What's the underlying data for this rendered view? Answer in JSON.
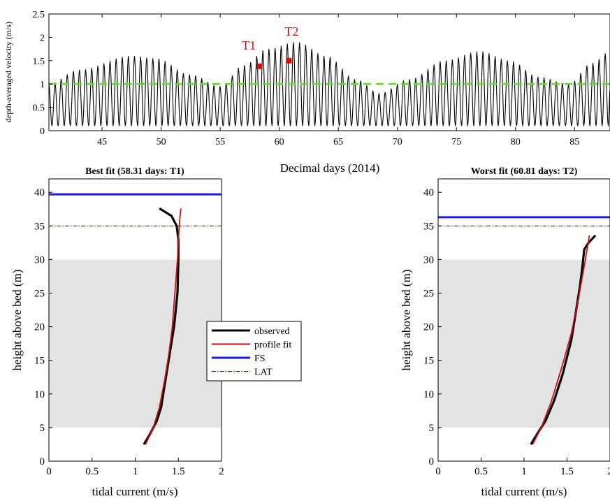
{
  "chart_data": [
    {
      "type": "line",
      "title": "",
      "xlabel": "Decimal days (2014)",
      "ylabel": "depth-averaged velocity (m/s)",
      "xlim": [
        40.5,
        88
      ],
      "ylim": [
        0,
        2.5
      ],
      "x_ticks": [
        45,
        50,
        55,
        60,
        65,
        70,
        75,
        80,
        85
      ],
      "y_ticks": [
        0,
        0.5,
        1,
        1.5,
        2,
        2.5
      ],
      "grid": false,
      "tidal_signal": {
        "semidiurnal_period_days": 0.5175,
        "trough_level": 0.1,
        "envelope_peaks": [
          {
            "x": 40.5,
            "y": 1.0
          },
          {
            "x": 43.0,
            "y": 1.3
          },
          {
            "x": 47.5,
            "y": 1.6
          },
          {
            "x": 49.5,
            "y": 1.55
          },
          {
            "x": 52.5,
            "y": 1.2
          },
          {
            "x": 55.0,
            "y": 0.95
          },
          {
            "x": 57.0,
            "y": 1.4
          },
          {
            "x": 59.0,
            "y": 1.75
          },
          {
            "x": 61.5,
            "y": 1.9
          },
          {
            "x": 64.0,
            "y": 1.6
          },
          {
            "x": 66.5,
            "y": 1.1
          },
          {
            "x": 68.5,
            "y": 0.8
          },
          {
            "x": 71.0,
            "y": 1.1
          },
          {
            "x": 74.0,
            "y": 1.5
          },
          {
            "x": 77.0,
            "y": 1.7
          },
          {
            "x": 79.5,
            "y": 1.5
          },
          {
            "x": 82.0,
            "y": 1.15
          },
          {
            "x": 84.5,
            "y": 1.0
          },
          {
            "x": 86.5,
            "y": 1.45
          },
          {
            "x": 88.0,
            "y": 1.7
          }
        ]
      },
      "threshold": {
        "y": 1.0,
        "color": "#66dd22"
      },
      "markers": [
        {
          "label": "T1",
          "x": 58.31,
          "y": 1.38,
          "color": "#cc1111"
        },
        {
          "label": "T2",
          "x": 60.81,
          "y": 1.5,
          "color": "#cc1111"
        }
      ]
    },
    {
      "type": "line",
      "title": "Best fit (58.31 days: T1)",
      "xlabel": "tidal current (m/s)",
      "ylabel": "height above bed (m)",
      "xlim": [
        0,
        2
      ],
      "ylim": [
        0,
        42
      ],
      "x_ticks": [
        0,
        0.5,
        1,
        1.5,
        2
      ],
      "x_tick_labels": [
        "0",
        "0.5",
        "1",
        "1.5",
        "2"
      ],
      "y_ticks": [
        0,
        5,
        10,
        15,
        20,
        25,
        30,
        35,
        40
      ],
      "shaded_band": {
        "y0": 5,
        "y1": 30,
        "color": "#e3e3e3"
      },
      "fs_level": 39.7,
      "lat_level": 35.0,
      "series": [
        {
          "name": "observed",
          "x": [
            1.1,
            1.17,
            1.25,
            1.3,
            1.35,
            1.4,
            1.45,
            1.49,
            1.5,
            1.5,
            1.48,
            1.42,
            1.28
          ],
          "y": [
            2.5,
            4,
            6,
            8,
            12,
            16,
            20,
            25,
            30,
            33,
            35,
            36.5,
            37.6
          ]
        },
        {
          "name": "profile fit",
          "x": [
            1.12,
            1.21,
            1.28,
            1.34,
            1.39,
            1.43,
            1.46,
            1.49,
            1.5,
            1.51,
            1.52,
            1.53
          ],
          "y": [
            2.5,
            5,
            8,
            12,
            16,
            20,
            25,
            30,
            33,
            35,
            36.5,
            37.6
          ]
        }
      ]
    },
    {
      "type": "line",
      "title": "Worst fit (60.81 days: T2)",
      "xlabel": "tidal current (m/s)",
      "ylabel": "height above bed (m)",
      "xlim": [
        0,
        2
      ],
      "ylim": [
        0,
        42
      ],
      "x_ticks": [
        0,
        0.5,
        1,
        1.5,
        2
      ],
      "x_tick_labels": [
        "0",
        "0.5",
        "1",
        "1.5",
        "2"
      ],
      "y_ticks": [
        0,
        5,
        10,
        15,
        20,
        25,
        30,
        35,
        40
      ],
      "shaded_band": {
        "y0": 5,
        "y1": 30,
        "color": "#e3e3e3"
      },
      "fs_level": 36.3,
      "lat_level": 35.0,
      "series": [
        {
          "name": "observed",
          "x": [
            1.08,
            1.15,
            1.25,
            1.35,
            1.45,
            1.55,
            1.6,
            1.65,
            1.68,
            1.7,
            1.75,
            1.83
          ],
          "y": [
            2.5,
            4,
            6,
            9,
            13,
            18,
            22,
            26,
            29,
            31.5,
            32.5,
            33.6
          ]
        },
        {
          "name": "profile fit",
          "x": [
            1.1,
            1.2,
            1.32,
            1.44,
            1.55,
            1.63,
            1.7,
            1.74,
            1.76
          ],
          "y": [
            2.5,
            5,
            9,
            14,
            19,
            24,
            29,
            32,
            33.6
          ]
        }
      ]
    }
  ],
  "legend": {
    "items": [
      {
        "label": "observed",
        "color": "#000000",
        "style": "solid",
        "width": 3
      },
      {
        "label": "profile fit",
        "color": "#cc1111",
        "style": "solid",
        "width": 2
      },
      {
        "label": "FS",
        "color": "#1a1aee",
        "style": "solid",
        "width": 3
      },
      {
        "label": "LAT",
        "color": "#1a1aaa",
        "style": "dashdot",
        "width": 1
      }
    ]
  },
  "colors": {
    "observed": "#000000",
    "fit": "#cc1111",
    "fs": "#1a1aee",
    "lat": "#1a1aaa",
    "band": "#e3e3e3",
    "threshold": "#66dd22"
  }
}
